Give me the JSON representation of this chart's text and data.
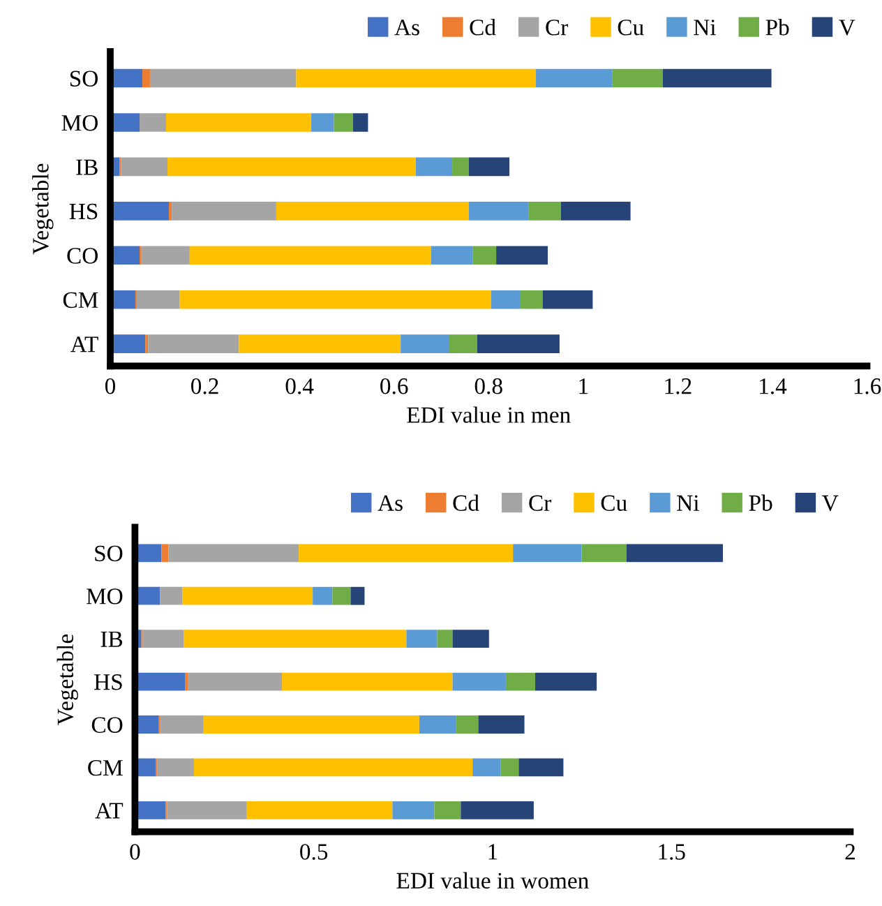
{
  "chart_data": [
    {
      "type": "bar",
      "orientation": "horizontal",
      "stacked": true,
      "xlabel": "EDI value in men",
      "ylabel": "Vegetable",
      "categories": [
        "SO",
        "MO",
        "IB",
        "HS",
        "CO",
        "CM",
        "AT"
      ],
      "xlim": [
        0,
        1.6
      ],
      "xticks": [
        0,
        0.2,
        0.4,
        0.6,
        0.8,
        1,
        1.2,
        1.4,
        1.6
      ],
      "legend": "top",
      "grid": false,
      "series": [
        {
          "name": "As",
          "color": "#4472c4",
          "values": [
            0.068,
            0.062,
            0.02,
            0.124,
            0.062,
            0.053,
            0.074
          ]
        },
        {
          "name": "Cd",
          "color": "#ed7d31",
          "values": [
            0.016,
            0.0,
            0.003,
            0.006,
            0.004,
            0.003,
            0.006
          ]
        },
        {
          "name": "Cr",
          "color": "#a5a5a5",
          "values": [
            0.309,
            0.056,
            0.098,
            0.221,
            0.102,
            0.091,
            0.192
          ]
        },
        {
          "name": "Cu",
          "color": "#ffc000",
          "values": [
            0.507,
            0.307,
            0.525,
            0.407,
            0.51,
            0.658,
            0.342
          ]
        },
        {
          "name": "Ni",
          "color": "#5b9bd5",
          "values": [
            0.161,
            0.048,
            0.077,
            0.127,
            0.088,
            0.061,
            0.103
          ]
        },
        {
          "name": "Pb",
          "color": "#70ad47",
          "values": [
            0.107,
            0.04,
            0.035,
            0.068,
            0.05,
            0.048,
            0.059
          ]
        },
        {
          "name": "V",
          "color": "#264478",
          "values": [
            0.23,
            0.032,
            0.086,
            0.147,
            0.109,
            0.106,
            0.174
          ]
        }
      ]
    },
    {
      "type": "bar",
      "orientation": "horizontal",
      "stacked": true,
      "xlabel": "EDI value in women",
      "ylabel": "Vegetable",
      "categories": [
        "SO",
        "MO",
        "IB",
        "HS",
        "CO",
        "CM",
        "AT"
      ],
      "xlim": [
        0,
        2
      ],
      "xticks": [
        0,
        0.5,
        1,
        1.5,
        2
      ],
      "legend": "top",
      "grid": false,
      "series": [
        {
          "name": "As",
          "color": "#4472c4",
          "values": [
            0.074,
            0.07,
            0.018,
            0.141,
            0.067,
            0.059,
            0.086
          ]
        },
        {
          "name": "Cd",
          "color": "#ed7d31",
          "values": [
            0.02,
            0.0,
            0.004,
            0.008,
            0.004,
            0.004,
            0.004
          ]
        },
        {
          "name": "Cr",
          "color": "#a5a5a5",
          "values": [
            0.364,
            0.063,
            0.115,
            0.262,
            0.121,
            0.102,
            0.223
          ]
        },
        {
          "name": "Cu",
          "color": "#ffc000",
          "values": [
            0.599,
            0.364,
            0.622,
            0.477,
            0.603,
            0.779,
            0.407
          ]
        },
        {
          "name": "Ni",
          "color": "#5b9bd5",
          "values": [
            0.192,
            0.055,
            0.086,
            0.149,
            0.102,
            0.078,
            0.117
          ]
        },
        {
          "name": "Pb",
          "color": "#70ad47",
          "values": [
            0.125,
            0.051,
            0.043,
            0.082,
            0.063,
            0.051,
            0.074
          ]
        },
        {
          "name": "V",
          "color": "#264478",
          "values": [
            0.27,
            0.039,
            0.102,
            0.172,
            0.129,
            0.125,
            0.204
          ]
        }
      ]
    }
  ]
}
